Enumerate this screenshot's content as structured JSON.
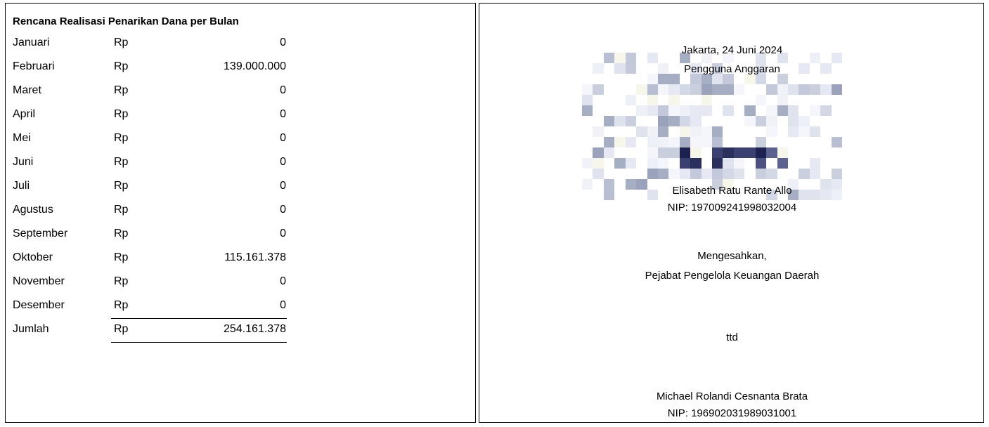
{
  "plan": {
    "title": "Rencana Realisasi Penarikan Dana per Bulan",
    "rows": [
      {
        "month": "Januari",
        "currency": "Rp",
        "amount": "0"
      },
      {
        "month": "Februari",
        "currency": "Rp",
        "amount": "139.000.000"
      },
      {
        "month": "Maret",
        "currency": "Rp",
        "amount": "0"
      },
      {
        "month": "April",
        "currency": "Rp",
        "amount": "0"
      },
      {
        "month": "Mei",
        "currency": "Rp",
        "amount": "0"
      },
      {
        "month": "Juni",
        "currency": "Rp",
        "amount": "0"
      },
      {
        "month": "Juli",
        "currency": "Rp",
        "amount": "0"
      },
      {
        "month": "Agustus",
        "currency": "Rp",
        "amount": "0"
      },
      {
        "month": "September",
        "currency": "Rp",
        "amount": "0"
      },
      {
        "month": "Oktober",
        "currency": "Rp",
        "amount": "115.161.378"
      },
      {
        "month": "November",
        "currency": "Rp",
        "amount": "0"
      },
      {
        "month": "Desember",
        "currency": "Rp",
        "amount": "0"
      }
    ],
    "total": {
      "label": "Jumlah",
      "currency": "Rp",
      "amount": "254.161.378"
    }
  },
  "signature": {
    "place_date": "Jakarta, 24 Juni 2024",
    "role": "Pengguna Anggaran",
    "name": "Elisabeth Ratu Rante Allo",
    "nip": "NIP: 197009241998032004",
    "approval_label": "Mengesahkan,",
    "approval_role": "Pejabat Pengelola Keuangan Daerah",
    "ttd": "ttd",
    "approver_name": "Michael Rolandi Cesnanta Brata",
    "approver_nip": "NIP: 196902031989031001"
  }
}
